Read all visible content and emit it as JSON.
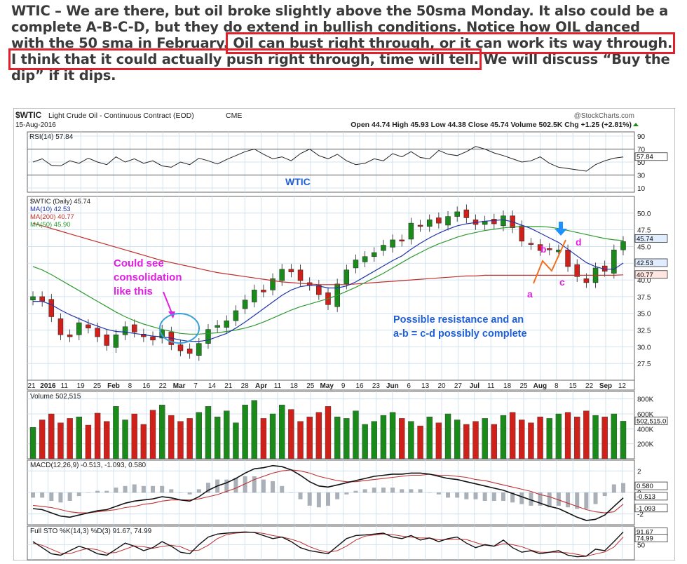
{
  "article": {
    "line1": "WTIC –  We are there, but oil broke slightly above the 50sma Monday. It also could be a",
    "line2": "complete A-B-C-D, but they do extend in bullish conditions.  Notice how OIL danced",
    "line3a": "with the 50 sma in February.",
    "line3b": " Oil can bust right through, or it can work its way through.",
    "line4a": "I think that it could actually push right through, time will tell.",
    "line4b": " We will discuss “Buy the",
    "line5": "dip” if it dips."
  },
  "colors": {
    "highlight_box": "#e0202a",
    "up_candle": "#1a8a1a",
    "down_candle": "#d0201a",
    "ma10": "#2233aa",
    "ma200": "#c0302a",
    "ma50": "#2e9a2e",
    "annotation_blue": "#1f5fd6",
    "annotation_magenta": "#e020e0",
    "annotation_orange": "#f07020"
  },
  "chart_data": {
    "type": "line",
    "header": {
      "symbol": "$WTIC",
      "name": "Light Crude Oil - Continuous Contract (EOD)",
      "exchange": "CME",
      "date": "15-Aug-2016",
      "source": "@StockCharts.com",
      "quote": "Open 44.74  High 45.93  Low 44.38  Close 45.74  Volume 502.5K  Chg +1.25 (+2.81%)"
    },
    "rsi": {
      "label": "RSI(14) 57.84",
      "value": 57.84,
      "ticks": [
        "90",
        "70",
        "50",
        "30",
        "10"
      ],
      "badge": "57.84",
      "values": [
        50,
        55,
        45,
        44,
        52,
        48,
        56,
        50,
        46,
        58,
        50,
        55,
        48,
        52,
        44,
        42,
        50,
        46,
        56,
        52,
        47,
        54,
        60,
        66,
        70,
        62,
        55,
        58,
        52,
        63,
        70,
        60,
        55,
        62,
        52,
        46,
        48,
        55,
        52,
        63,
        58,
        66,
        57,
        55,
        68,
        62,
        60,
        66,
        74,
        70,
        64,
        60,
        55,
        50,
        52,
        58,
        48,
        42,
        40,
        38,
        36,
        46,
        52,
        56,
        57.84
      ]
    },
    "price": {
      "legend": [
        "$WTIC (Daily) 45.74",
        "MA(10) 42.53",
        "MA(200) 40.77",
        "MA(50) 45.90"
      ],
      "ticks": [
        "50.0",
        "47.5",
        "45.0",
        "42.5",
        "40.0",
        "37.5",
        "35.0",
        "32.5",
        "30.0",
        "27.5"
      ],
      "ylim": [
        25.0,
        52.5
      ],
      "badges": [
        "45.74",
        "42.53",
        "40.77"
      ],
      "close": [
        37.5,
        36.8,
        34.5,
        31.8,
        31.5,
        33.6,
        32.8,
        31.5,
        30.2,
        31.8,
        33.0,
        32.2,
        31.5,
        31.0,
        32.5,
        30.3,
        29.4,
        29.0,
        30.5,
        32.6,
        33.2,
        33.9,
        35.4,
        37.0,
        38.5,
        38.2,
        40.2,
        41.6,
        41.2,
        39.9,
        39.2,
        37.8,
        36.3,
        39.4,
        41.5,
        43.0,
        43.5,
        44.1,
        45.2,
        46.0,
        45.8,
        48.5,
        48.0,
        49.0,
        48.5,
        49.5,
        50.2,
        49.3,
        48.3,
        48.8,
        48.4,
        49.6,
        47.8,
        45.8,
        45.3,
        44.4,
        44.5,
        44.5,
        42.0,
        40.5,
        39.6,
        41.8,
        41.3,
        44.5,
        45.74
      ],
      "ma10": [
        36.8,
        36.8,
        36.3,
        35.5,
        34.8,
        34.2,
        33.6,
        33.1,
        32.6,
        32.3,
        32.2,
        32.0,
        31.8,
        31.6,
        31.5,
        31.3,
        31.0,
        30.8,
        30.8,
        31.0,
        31.5,
        32.0,
        32.8,
        33.7,
        34.7,
        35.7,
        36.7,
        37.7,
        38.5,
        39.0,
        39.2,
        39.1,
        38.8,
        38.8,
        39.1,
        39.7,
        40.5,
        41.3,
        42.1,
        42.9,
        43.6,
        44.6,
        45.5,
        46.3,
        47.0,
        47.6,
        48.1,
        48.4,
        48.6,
        48.8,
        48.9,
        49.0,
        48.7,
        48.2,
        47.7,
        47.0,
        46.3,
        45.6,
        44.6,
        43.6,
        42.6,
        42.0,
        41.6,
        41.6,
        42.53
      ],
      "ma50": [
        42.0,
        41.5,
        40.8,
        40.0,
        39.2,
        38.4,
        37.6,
        36.8,
        36.0,
        35.2,
        34.5,
        33.9,
        33.4,
        33.0,
        32.6,
        32.3,
        32.0,
        31.9,
        31.9,
        32.0,
        32.1,
        32.3,
        32.5,
        32.8,
        33.2,
        33.7,
        34.3,
        34.9,
        35.5,
        36.0,
        36.4,
        36.8,
        37.2,
        37.7,
        38.3,
        38.9,
        39.6,
        40.3,
        41.0,
        41.8,
        42.6,
        43.4,
        44.1,
        44.8,
        45.4,
        45.9,
        46.4,
        46.8,
        47.1,
        47.4,
        47.6,
        47.8,
        47.9,
        48.0,
        48.0,
        48.0,
        47.9,
        47.7,
        47.4,
        47.1,
        46.8,
        46.5,
        46.2,
        46.0,
        45.9
      ],
      "ma200": [
        48.5,
        48.1,
        47.7,
        47.3,
        46.9,
        46.5,
        46.1,
        45.7,
        45.3,
        44.9,
        44.5,
        44.1,
        43.7,
        43.3,
        42.9,
        42.6,
        42.3,
        42.0,
        41.7,
        41.4,
        41.1,
        40.9,
        40.7,
        40.5,
        40.3,
        40.1,
        39.9,
        39.7,
        39.6,
        39.5,
        39.4,
        39.3,
        39.3,
        39.3,
        39.3,
        39.4,
        39.5,
        39.6,
        39.7,
        39.8,
        39.9,
        40.0,
        40.1,
        40.2,
        40.3,
        40.4,
        40.5,
        40.6,
        40.6,
        40.7,
        40.7,
        40.7,
        40.7,
        40.7,
        40.7,
        40.7,
        40.7,
        40.7,
        40.7,
        40.7,
        40.7,
        40.7,
        40.7,
        40.7,
        40.77
      ],
      "annotations": {
        "wtic": "WTIC",
        "consolidation": [
          "Could see",
          "consolidation",
          "like this"
        ],
        "resistance": [
          "Possible resistance and an",
          "a-b = c-d possibly complete"
        ],
        "points": [
          "a",
          "b",
          "c",
          "d"
        ]
      }
    },
    "x_ticks": [
      "21",
      "2016",
      "11",
      "19",
      "25",
      "Feb",
      "8",
      "16",
      "22",
      "Mar",
      "7",
      "14",
      "21",
      "28",
      "Apr",
      "11",
      "18",
      "25",
      "May",
      "9",
      "16",
      "23",
      "Jun",
      "6",
      "13",
      "20",
      "27",
      "Jul",
      "11",
      "18",
      "25",
      "Aug",
      "8",
      "15",
      "22",
      "Sep",
      "12"
    ],
    "volume": {
      "label": "Volume 502,515",
      "ticks": [
        "800K",
        "600K",
        "400K",
        "200K"
      ],
      "badge": "502,515.0",
      "values": [
        420,
        520,
        600,
        480,
        540,
        560,
        450,
        610,
        500,
        700,
        520,
        600,
        460,
        650,
        720,
        580,
        500,
        540,
        620,
        700,
        560,
        640,
        480,
        720,
        780,
        540,
        600,
        720,
        660,
        500,
        560,
        620,
        700,
        560,
        540,
        640,
        460,
        500,
        580,
        620,
        540,
        500,
        440,
        560,
        480,
        600,
        520,
        460,
        500,
        540,
        460,
        580,
        620,
        520,
        480,
        560,
        540,
        600,
        620,
        560,
        640,
        580,
        560,
        600,
        502.515
      ]
    },
    "macd": {
      "label": "MACD(12,26,9) -0.513, -1.093, 0.580",
      "ticks": [
        "2",
        "0",
        "-2"
      ],
      "badges": [
        "0.580",
        "-0.513",
        "-1.093"
      ],
      "macd": [
        -1.5,
        -1.6,
        -1.9,
        -2.2,
        -2.3,
        -2.1,
        -1.9,
        -1.7,
        -1.6,
        -1.3,
        -1.0,
        -0.8,
        -0.7,
        -0.6,
        -0.4,
        -0.5,
        -0.7,
        -0.8,
        -0.4,
        0.2,
        0.6,
        0.9,
        1.3,
        1.8,
        2.2,
        2.3,
        2.5,
        2.4,
        2.1,
        1.6,
        1.0,
        0.6,
        0.5,
        0.7,
        0.9,
        1.1,
        1.3,
        1.5,
        1.6,
        1.7,
        1.7,
        1.8,
        1.8,
        1.7,
        1.5,
        1.3,
        1.2,
        1.0,
        0.8,
        0.6,
        0.4,
        0.2,
        -0.1,
        -0.4,
        -0.7,
        -1.0,
        -1.3,
        -1.5,
        -1.9,
        -2.3,
        -2.6,
        -2.5,
        -2.1,
        -1.3,
        -0.513
      ],
      "signal": [
        -1.2,
        -1.3,
        -1.4,
        -1.6,
        -1.8,
        -1.9,
        -1.9,
        -1.8,
        -1.7,
        -1.6,
        -1.4,
        -1.3,
        -1.1,
        -1.0,
        -0.8,
        -0.7,
        -0.7,
        -0.7,
        -0.6,
        -0.4,
        -0.2,
        0.1,
        0.4,
        0.8,
        1.2,
        1.5,
        1.8,
        2.0,
        2.1,
        2.0,
        1.8,
        1.5,
        1.3,
        1.1,
        1.0,
        1.0,
        1.1,
        1.2,
        1.3,
        1.4,
        1.5,
        1.6,
        1.6,
        1.7,
        1.6,
        1.6,
        1.5,
        1.4,
        1.2,
        1.1,
        0.9,
        0.7,
        0.5,
        0.3,
        0.1,
        -0.2,
        -0.4,
        -0.7,
        -1.0,
        -1.3,
        -1.6,
        -1.8,
        -1.9,
        -1.8,
        -1.093
      ]
    },
    "stoch": {
      "label": "Full STO %K(14,3) %D(3) 91.67, 74.99",
      "ticks": [
        "50"
      ],
      "badges": [
        "91.67",
        "74.99"
      ],
      "k": [
        60,
        40,
        20,
        15,
        30,
        45,
        35,
        20,
        15,
        35,
        55,
        45,
        30,
        40,
        60,
        45,
        25,
        20,
        50,
        75,
        85,
        88,
        90,
        92,
        90,
        80,
        70,
        75,
        60,
        40,
        30,
        25,
        20,
        45,
        70,
        80,
        82,
        85,
        88,
        75,
        70,
        80,
        65,
        72,
        60,
        70,
        75,
        55,
        40,
        50,
        45,
        65,
        40,
        25,
        30,
        20,
        25,
        30,
        15,
        10,
        12,
        35,
        30,
        60,
        91.67
      ],
      "d": [
        55,
        48,
        35,
        22,
        20,
        30,
        38,
        33,
        22,
        24,
        35,
        46,
        43,
        38,
        44,
        48,
        43,
        30,
        32,
        48,
        70,
        83,
        88,
        90,
        91,
        87,
        80,
        75,
        68,
        58,
        43,
        32,
        25,
        30,
        45,
        65,
        78,
        82,
        85,
        83,
        78,
        75,
        72,
        72,
        66,
        67,
        68,
        67,
        57,
        48,
        45,
        53,
        50,
        43,
        32,
        25,
        25,
        25,
        23,
        18,
        12,
        19,
        26,
        42,
        74.99
      ]
    }
  }
}
